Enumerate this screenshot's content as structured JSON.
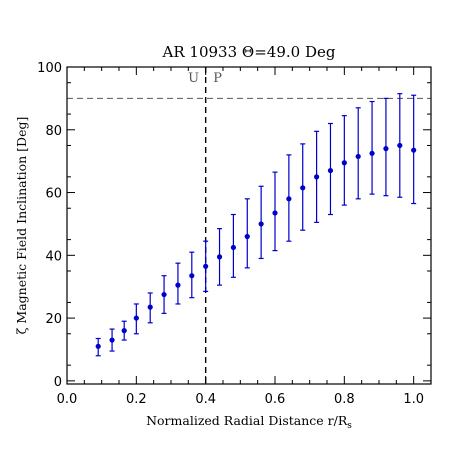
{
  "chart_data": {
    "type": "scatter",
    "title": "AR 10933 Θ=49.0 Deg",
    "xlabel": "Normalized Radial Distance r/R",
    "xlabel_subscript": "s",
    "ylabel": "ζ Magnetic Field Inclination [Deg]",
    "xlim": [
      0.0,
      1.05
    ],
    "ylim": [
      -1,
      100
    ],
    "xticks": [
      "0.0",
      "0.2",
      "0.4",
      "0.6",
      "0.8",
      "1.0"
    ],
    "yticks": [
      "0",
      "20",
      "40",
      "60",
      "80",
      "100"
    ],
    "grid": false,
    "marker_color": "#0000cc",
    "reference_lines": {
      "vertical_x": 0.4,
      "horizontal_y": 90,
      "style": "dashed"
    },
    "region_labels": [
      "U",
      "P"
    ],
    "series": [
      {
        "x": [
          0.09,
          0.13,
          0.165,
          0.2,
          0.24,
          0.28,
          0.32,
          0.36,
          0.4,
          0.44,
          0.48,
          0.52,
          0.56,
          0.6,
          0.64,
          0.68,
          0.72,
          0.76,
          0.8,
          0.84,
          0.88,
          0.92,
          0.96,
          1.0
        ],
        "y": [
          11.0,
          13.0,
          16.0,
          20.0,
          23.5,
          27.5,
          30.5,
          33.5,
          36.5,
          39.5,
          42.5,
          46.0,
          50.0,
          53.5,
          58.0,
          61.5,
          65.0,
          67.0,
          69.5,
          71.5,
          72.5,
          74.0,
          75.0,
          73.5
        ],
        "yerr_low": [
          3.0,
          3.5,
          3.0,
          5.0,
          5.0,
          6.0,
          6.0,
          7.0,
          8.0,
          9.0,
          9.5,
          10.0,
          11.0,
          12.0,
          13.5,
          13.5,
          14.5,
          14.0,
          13.5,
          13.5,
          13.0,
          15.0,
          16.5,
          17.0
        ],
        "yerr_high": [
          2.5,
          3.5,
          3.0,
          4.5,
          4.5,
          6.0,
          7.0,
          7.5,
          8.0,
          9.0,
          10.5,
          12.0,
          12.0,
          13.0,
          14.0,
          14.0,
          14.5,
          15.0,
          15.0,
          15.5,
          16.5,
          16.0,
          16.5,
          17.5
        ]
      }
    ]
  }
}
